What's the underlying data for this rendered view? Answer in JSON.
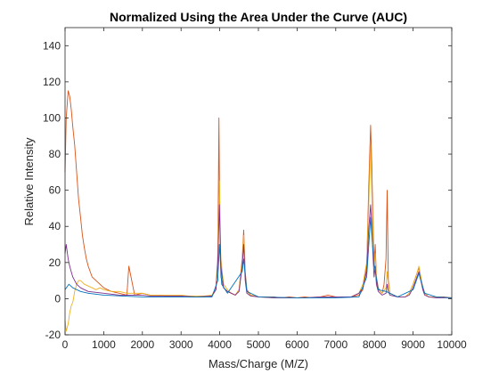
{
  "chart_data": {
    "type": "line",
    "title": "Normalized Using the Area Under the Curve (AUC)",
    "xlabel": "Mass/Charge (M/Z)",
    "ylabel": "Relative Intensity",
    "xlim": [
      0,
      10000
    ],
    "ylim": [
      -20,
      150
    ],
    "xticks": [
      0,
      1000,
      2000,
      3000,
      4000,
      5000,
      6000,
      7000,
      8000,
      9000,
      10000
    ],
    "yticks": [
      -20,
      0,
      20,
      40,
      60,
      80,
      100,
      120,
      140
    ],
    "xtick_labels": [
      "0",
      "1000",
      "2000",
      "3000",
      "4000",
      "5000",
      "6000",
      "7000",
      "8000",
      "9000",
      "10000"
    ],
    "ytick_labels": [
      "-20",
      "0",
      "20",
      "40",
      "60",
      "80",
      "100",
      "120",
      "140"
    ],
    "grid": false,
    "series": [
      {
        "color": "#D95319",
        "x": [
          0,
          30,
          80,
          120,
          160,
          200,
          250,
          300,
          350,
          400,
          450,
          500,
          550,
          600,
          700,
          800,
          900,
          1000,
          1100,
          1200,
          1400,
          1600,
          1650,
          1800,
          2000,
          2200,
          2400,
          2600,
          2800,
          3000,
          3200,
          3400,
          3600,
          3800,
          3900,
          3950,
          3980,
          4000,
          4030,
          4100,
          4200,
          4300,
          4400,
          4500,
          4580,
          4620,
          4660,
          4700,
          4800,
          5000,
          5200,
          5400,
          5600,
          5800,
          6000,
          6200,
          6400,
          6600,
          6800,
          7000,
          7200,
          7400,
          7600,
          7700,
          7800,
          7850,
          7900,
          7930,
          7960,
          7990,
          8020,
          8050,
          8100,
          8150,
          8200,
          8250,
          8300,
          8330,
          8360,
          8400,
          8500,
          8600,
          8700,
          8800,
          8900,
          9000,
          9100,
          9150,
          9200,
          9250,
          9300,
          9400,
          9600,
          9800,
          10000
        ],
        "y": [
          70,
          100,
          115,
          112,
          105,
          95,
          85,
          70,
          55,
          45,
          35,
          28,
          22,
          18,
          12,
          10,
          8,
          6,
          5,
          4,
          3,
          2,
          18,
          2,
          3,
          2,
          2,
          1.5,
          1.5,
          1.5,
          1,
          1,
          1,
          1.5,
          5,
          20,
          100,
          45,
          12,
          6,
          4,
          3,
          2,
          5,
          22,
          38,
          15,
          5,
          2,
          1,
          1,
          1,
          0.5,
          1,
          0.5,
          1,
          0.5,
          1,
          2,
          1,
          1,
          1,
          2,
          5,
          18,
          60,
          96,
          75,
          45,
          20,
          30,
          12,
          6,
          4,
          3,
          8,
          22,
          60,
          10,
          3,
          2,
          1,
          1,
          1,
          3,
          8,
          14,
          17,
          12,
          6,
          3,
          1,
          1,
          1,
          0.5
        ]
      },
      {
        "color": "#EDB120",
        "x": [
          0,
          30,
          80,
          120,
          160,
          200,
          250,
          300,
          350,
          400,
          450,
          500,
          600,
          700,
          800,
          900,
          1000,
          1200,
          1400,
          1600,
          1800,
          2000,
          2200,
          2400,
          2600,
          2800,
          3000,
          3200,
          3400,
          3600,
          3800,
          3900,
          3950,
          3990,
          4030,
          4100,
          4200,
          4300,
          4400,
          4500,
          4580,
          4620,
          4660,
          4700,
          4800,
          5000,
          5400,
          5800,
          6200,
          6600,
          7000,
          7400,
          7600,
          7700,
          7800,
          7850,
          7900,
          7930,
          7960,
          7990,
          8020,
          8050,
          8100,
          8200,
          8300,
          8330,
          8360,
          8400,
          8600,
          8800,
          8900,
          9000,
          9100,
          9150,
          9200,
          9250,
          9300,
          9400,
          9600,
          10000
        ],
        "y": [
          -12,
          -18,
          -14,
          -8,
          -4,
          -2,
          4,
          8,
          10,
          10,
          9,
          8,
          7,
          6,
          5,
          6,
          5,
          4,
          4,
          3,
          3,
          3,
          2,
          2,
          2,
          2,
          2,
          1.5,
          1.5,
          1.5,
          2,
          6,
          25,
          65,
          22,
          8,
          5,
          3,
          2,
          5,
          20,
          35,
          12,
          4,
          2,
          1,
          0.5,
          0.5,
          0.5,
          1,
          1,
          1,
          3,
          8,
          20,
          50,
          85,
          60,
          35,
          18,
          25,
          10,
          5,
          3,
          6,
          15,
          8,
          3,
          1,
          1,
          3,
          8,
          14,
          18,
          12,
          6,
          3,
          1,
          1,
          0.5
        ]
      },
      {
        "color": "#7E2F8E",
        "x": [
          0,
          30,
          80,
          120,
          160,
          200,
          250,
          300,
          400,
          500,
          600,
          800,
          1000,
          1200,
          1400,
          1600,
          1800,
          2000,
          2200,
          2400,
          2600,
          2800,
          3000,
          3400,
          3800,
          3900,
          3950,
          3990,
          4030,
          4100,
          4200,
          4300,
          4400,
          4500,
          4580,
          4620,
          4660,
          4700,
          4800,
          5000,
          5400,
          5800,
          6200,
          6600,
          7000,
          7400,
          7600,
          7700,
          7800,
          7850,
          7900,
          7930,
          7960,
          7990,
          8020,
          8050,
          8100,
          8200,
          8300,
          8330,
          8360,
          8400,
          8600,
          8800,
          8900,
          9000,
          9100,
          9150,
          9200,
          9250,
          9300,
          9400,
          9600,
          10000
        ],
        "y": [
          25,
          30,
          22,
          18,
          15,
          12,
          10,
          8,
          6,
          5,
          4,
          3.5,
          3,
          2.5,
          2,
          2,
          2,
          2,
          1.5,
          1.5,
          1.5,
          1.5,
          1.5,
          1,
          1.5,
          5,
          20,
          52,
          18,
          6,
          4,
          3,
          2,
          4,
          18,
          30,
          10,
          3,
          1.5,
          1,
          0.5,
          0.5,
          0.5,
          1,
          1,
          1,
          3,
          6,
          15,
          38,
          52,
          40,
          25,
          12,
          18,
          8,
          4,
          2,
          3,
          8,
          4,
          2,
          1,
          1,
          2,
          6,
          12,
          15,
          10,
          5,
          2,
          1,
          0.5,
          0.5
        ]
      },
      {
        "color": "#0072BD",
        "x": [
          0,
          100,
          200,
          400,
          600,
          1000,
          2000,
          3000,
          3800,
          3950,
          3990,
          4050,
          4200,
          4580,
          4620,
          4700,
          5000,
          6000,
          7000,
          7600,
          7800,
          7900,
          7950,
          8000,
          8100,
          8300,
          8600,
          9000,
          9150,
          9200,
          9300,
          9600,
          10000
        ],
        "y": [
          5,
          8,
          6,
          4,
          3,
          2,
          1,
          1,
          1,
          10,
          30,
          8,
          3,
          15,
          22,
          4,
          1,
          0.5,
          0.5,
          1,
          12,
          45,
          30,
          18,
          5,
          4,
          1,
          5,
          14,
          10,
          3,
          1,
          0.5
        ]
      }
    ]
  }
}
